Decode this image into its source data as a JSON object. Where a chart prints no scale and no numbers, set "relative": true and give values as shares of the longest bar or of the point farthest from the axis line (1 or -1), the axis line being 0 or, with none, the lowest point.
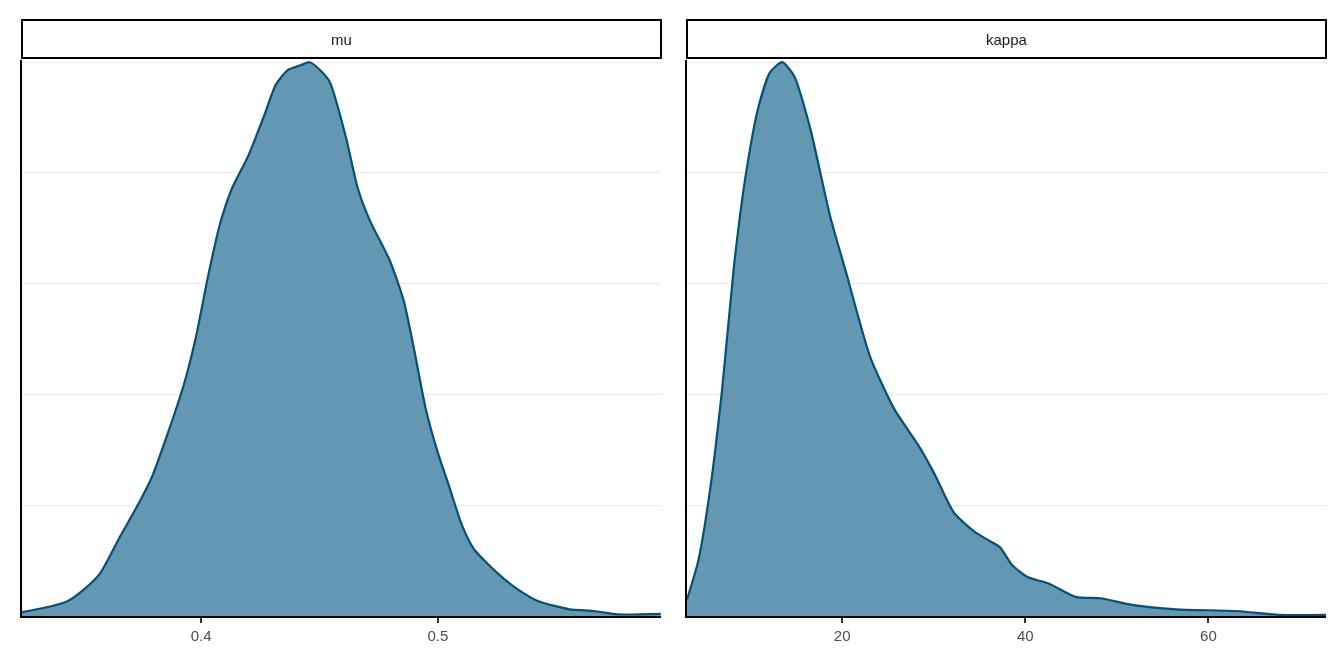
{
  "chart_data": [
    {
      "type": "area",
      "title": "mu",
      "relative": true,
      "color": "#6497b1",
      "grid": "y",
      "xlim": [
        0.3243,
        0.5943
      ],
      "xticks": [
        0.4,
        0.5
      ],
      "x": [
        0.3243,
        0.337,
        0.3437,
        0.3505,
        0.3573,
        0.3657,
        0.3742,
        0.3792,
        0.386,
        0.3927,
        0.3978,
        0.4029,
        0.4079,
        0.413,
        0.4198,
        0.4265,
        0.4316,
        0.4367,
        0.4417,
        0.4459,
        0.4502,
        0.4544,
        0.4611,
        0.4662,
        0.4713,
        0.4797,
        0.4856,
        0.4899,
        0.4949,
        0.5,
        0.5051,
        0.5101,
        0.5152,
        0.5253,
        0.5338,
        0.5422,
        0.5557,
        0.5659,
        0.576,
        0.5942
      ],
      "values": [
        0.007,
        0.018,
        0.027,
        0.048,
        0.077,
        0.143,
        0.208,
        0.251,
        0.331,
        0.418,
        0.504,
        0.613,
        0.707,
        0.772,
        0.83,
        0.902,
        0.96,
        0.986,
        0.994,
        1.0,
        0.986,
        0.964,
        0.866,
        0.772,
        0.714,
        0.642,
        0.569,
        0.483,
        0.374,
        0.295,
        0.23,
        0.165,
        0.121,
        0.077,
        0.048,
        0.027,
        0.012,
        0.009,
        0.003,
        0.004
      ]
    },
    {
      "type": "area",
      "title": "kappa",
      "relative": true,
      "color": "#6497b1",
      "grid": "y",
      "xlim": [
        3.06,
        72.84
      ],
      "xticks": [
        20,
        40,
        60
      ],
      "x": [
        3.06,
        4.28,
        5.59,
        6.9,
        8.21,
        9.52,
        10.83,
        12.14,
        13.45,
        14.76,
        16.51,
        18.69,
        20.44,
        23.06,
        25.68,
        28.3,
        30.04,
        32.23,
        34.41,
        36.16,
        37.25,
        38.56,
        40.31,
        42.49,
        45.55,
        48.17,
        51.66,
        56.46,
        63.01,
        67.82,
        72.84
      ],
      "values": [
        0.03,
        0.099,
        0.229,
        0.41,
        0.635,
        0.801,
        0.917,
        0.982,
        1.0,
        0.975,
        0.881,
        0.722,
        0.62,
        0.468,
        0.374,
        0.309,
        0.258,
        0.186,
        0.153,
        0.135,
        0.124,
        0.092,
        0.07,
        0.059,
        0.034,
        0.032,
        0.02,
        0.012,
        0.009,
        0.002,
        0.002
      ]
    }
  ]
}
